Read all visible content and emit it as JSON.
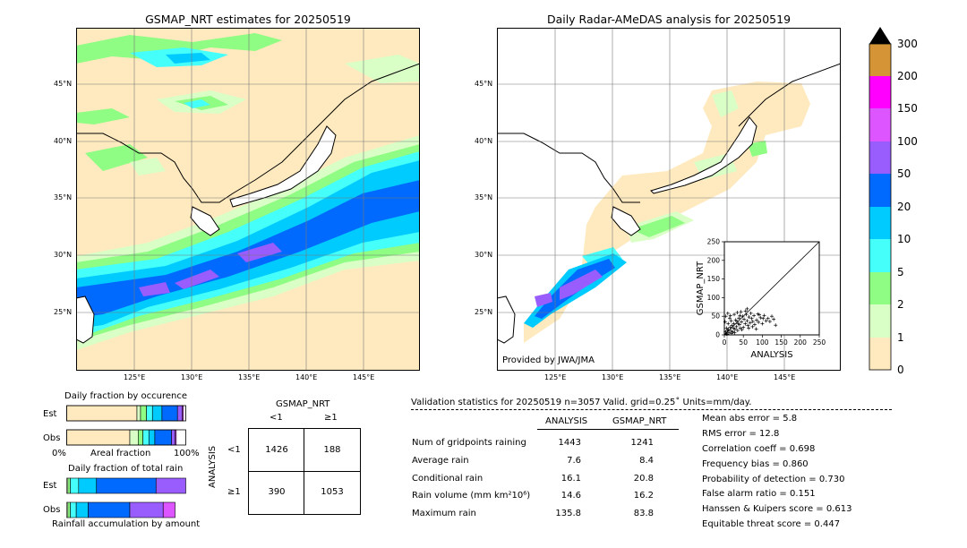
{
  "colors": {
    "land": "#ffffff",
    "trace": "#ffeabf",
    "c1": "#d9ffc6",
    "c2": "#8ffc83",
    "c5": "#45fffb",
    "c10": "#00cbff",
    "c20": "#006aff",
    "c50": "#9a5dfd",
    "c100": "#dc55ff",
    "c150": "#ff00ff",
    "c200": "#d59536"
  },
  "left_map": {
    "title": "GSMAP_NRT estimates for 20250519",
    "lat_labels": [
      "45°N",
      "40°N",
      "35°N",
      "30°N",
      "25°N"
    ],
    "lon_labels": [
      "125°E",
      "130°E",
      "135°E",
      "140°E",
      "145°E"
    ]
  },
  "right_map": {
    "title": "Daily Radar-AMeDAS analysis for 20250519",
    "lat_labels": [
      "45°N",
      "40°N",
      "35°N",
      "30°N",
      "25°N"
    ],
    "lon_labels": [
      "125°E",
      "130°E",
      "135°E",
      "140°E",
      "145°E"
    ],
    "credit": "Provided by JWA/JMA"
  },
  "colorbar": {
    "labels": [
      "300",
      "200",
      "150",
      "100",
      "50",
      "20",
      "10",
      "5",
      "2",
      "1",
      "0"
    ]
  },
  "chart_data": [
    {
      "type": "scatter",
      "xlabel": "ANALYSIS",
      "ylabel": "GSMAP_NRT",
      "xlim": [
        0,
        250
      ],
      "ylim": [
        0,
        250
      ],
      "xticks": [
        "0",
        "50",
        "100",
        "150",
        "200",
        "250"
      ],
      "yticks": [
        "0",
        "50",
        "100",
        "150",
        "200",
        "250"
      ],
      "diagonal": true,
      "points": [
        [
          5,
          3
        ],
        [
          8,
          12
        ],
        [
          12,
          6
        ],
        [
          15,
          20
        ],
        [
          18,
          10
        ],
        [
          20,
          25
        ],
        [
          22,
          8
        ],
        [
          25,
          30
        ],
        [
          28,
          15
        ],
        [
          30,
          40
        ],
        [
          32,
          22
        ],
        [
          35,
          12
        ],
        [
          38,
          45
        ],
        [
          40,
          28
        ],
        [
          42,
          18
        ],
        [
          45,
          35
        ],
        [
          48,
          50
        ],
        [
          50,
          20
        ],
        [
          52,
          42
        ],
        [
          55,
          30
        ],
        [
          58,
          55
        ],
        [
          60,
          38
        ],
        [
          62,
          25
        ],
        [
          65,
          48
        ],
        [
          68,
          32
        ],
        [
          70,
          58
        ],
        [
          72,
          44
        ],
        [
          75,
          36
        ],
        [
          78,
          52
        ],
        [
          80,
          28
        ],
        [
          85,
          40
        ],
        [
          88,
          56
        ],
        [
          90,
          34
        ],
        [
          95,
          46
        ],
        [
          100,
          30
        ],
        [
          105,
          52
        ],
        [
          110,
          38
        ],
        [
          115,
          44
        ],
        [
          120,
          36
        ],
        [
          125,
          50
        ],
        [
          130,
          42
        ],
        [
          135,
          26
        ],
        [
          10,
          30
        ],
        [
          14,
          45
        ],
        [
          6,
          18
        ],
        [
          3,
          8
        ],
        [
          26,
          55
        ],
        [
          34,
          60
        ],
        [
          44,
          62
        ],
        [
          56,
          64
        ],
        [
          18,
          38
        ],
        [
          24,
          18
        ],
        [
          36,
          30
        ],
        [
          46,
          14
        ],
        [
          64,
          18
        ],
        [
          2,
          35
        ],
        [
          4,
          50
        ],
        [
          9,
          58
        ],
        [
          16,
          52
        ],
        [
          60,
          70
        ],
        [
          74,
          22
        ],
        [
          84,
          16
        ],
        [
          92,
          54
        ],
        [
          102,
          44
        ],
        [
          7,
          2
        ],
        [
          11,
          14
        ],
        [
          19,
          4
        ],
        [
          27,
          6
        ],
        [
          33,
          36
        ],
        [
          41,
          52
        ]
      ]
    },
    {
      "type": "bar",
      "title": "Daily fraction by occurence",
      "categories": [
        "Est",
        "Obs"
      ],
      "xlabel": "Areal fraction",
      "xtick_labels": [
        "0%",
        "100%"
      ],
      "series": [
        {
          "color": "#ffeabf",
          "values": [
            0.59,
            0.53
          ]
        },
        {
          "color": "#d9ffc6",
          "values": [
            0.03,
            0.07
          ]
        },
        {
          "color": "#8ffc83",
          "values": [
            0.05,
            0.04
          ]
        },
        {
          "color": "#45fffb",
          "values": [
            0.05,
            0.05
          ]
        },
        {
          "color": "#00cbff",
          "values": [
            0.08,
            0.05
          ]
        },
        {
          "color": "#006aff",
          "values": [
            0.13,
            0.14
          ]
        },
        {
          "color": "#9a5dfd",
          "values": [
            0.04,
            0.03
          ]
        },
        {
          "color": "#dc55ff",
          "values": [
            0.01,
            0.01
          ]
        }
      ]
    },
    {
      "type": "bar",
      "title": "Daily fraction of total rain",
      "categories": [
        "Est",
        "Obs"
      ],
      "xlabel": "Rainfall accumulation by amount",
      "series": [
        {
          "color": "#d9ffc6",
          "values": [
            0.01,
            0.01
          ]
        },
        {
          "color": "#8ffc83",
          "values": [
            0.02,
            0.02
          ]
        },
        {
          "color": "#45fffb",
          "values": [
            0.07,
            0.05
          ]
        },
        {
          "color": "#00cbff",
          "values": [
            0.15,
            0.1
          ]
        },
        {
          "color": "#006aff",
          "values": [
            0.5,
            0.35
          ]
        },
        {
          "color": "#9a5dfd",
          "values": [
            0.25,
            0.28
          ]
        },
        {
          "color": "#dc55ff",
          "values": [
            0.0,
            0.1
          ]
        }
      ]
    },
    {
      "type": "table",
      "col_header": "GSMAP_NRT",
      "row_header": "ANALYSIS",
      "col_labels": [
        "<1",
        "≥1"
      ],
      "row_labels": [
        "<1",
        "≥1"
      ],
      "cells": [
        [
          "1426",
          "188"
        ],
        [
          "390",
          "1053"
        ]
      ]
    }
  ],
  "stats": {
    "header": "Validation statistics for 20250519  n=3057 Valid. grid=0.25˚ Units=mm/day.",
    "col_analysis": "ANALYSIS",
    "col_gsmap": "GSMAP_NRT",
    "rows": [
      {
        "label": "Num of gridpoints raining",
        "analysis": "1443",
        "gsmap": "1241"
      },
      {
        "label": "Average rain",
        "analysis": "7.6",
        "gsmap": "8.4"
      },
      {
        "label": "Conditional rain",
        "analysis": "16.1",
        "gsmap": "20.8"
      },
      {
        "label": "Rain volume (mm km²10⁶)",
        "analysis": "14.6",
        "gsmap": "16.2"
      },
      {
        "label": "Maximum rain",
        "analysis": "135.8",
        "gsmap": "83.8"
      }
    ],
    "scores": [
      "Mean abs error =    5.8",
      "RMS error =   12.8",
      "Correlation coeff =  0.698",
      "Frequency bias =  0.860",
      "Probability of detection =  0.730",
      "False alarm ratio =  0.151",
      "Hanssen & Kuipers score =  0.613",
      "Equitable threat score =  0.447"
    ]
  }
}
